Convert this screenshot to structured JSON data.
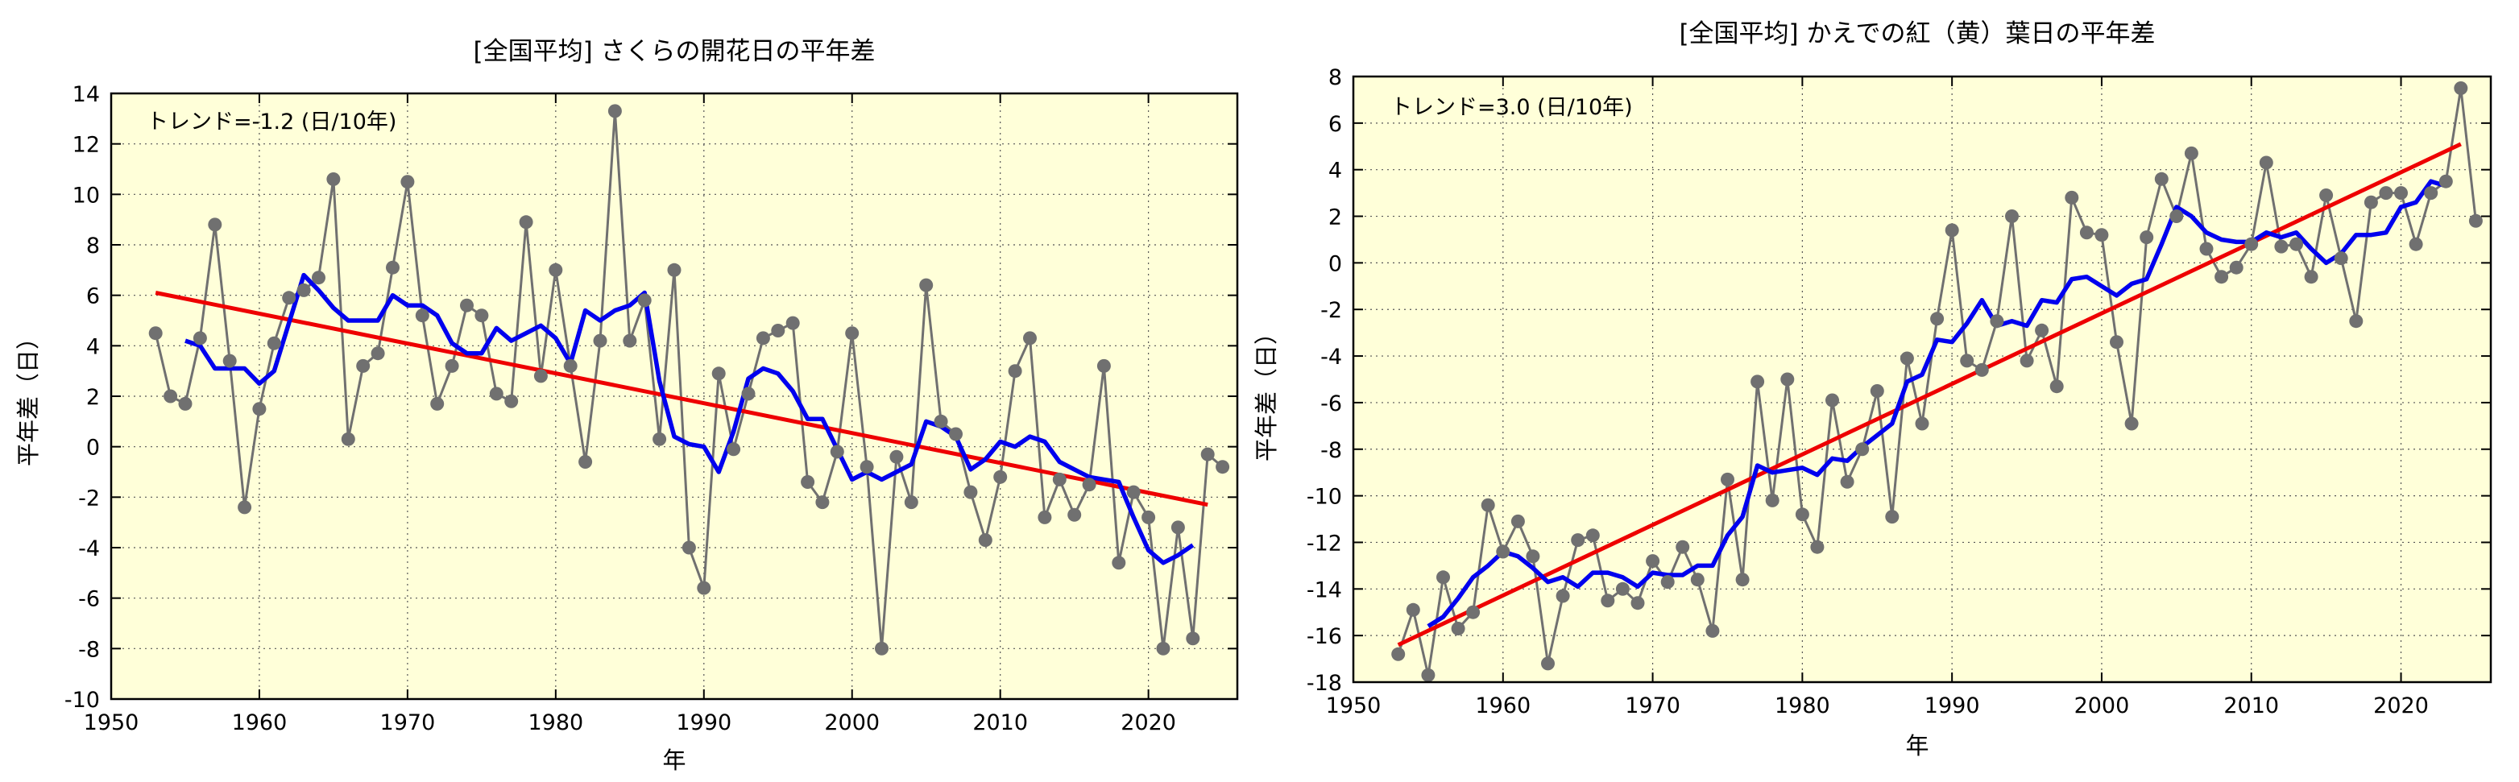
{
  "chart_data": [
    {
      "type": "line",
      "title": "[全国平均] さくらの開花日の平年差",
      "xlabel": "年",
      "ylabel": "平年差（日）",
      "annotation": "トレンド=-1.2 (日/10年)",
      "xlim": [
        1950,
        2026
      ],
      "ylim": [
        -10,
        14
      ],
      "xticks": [
        1950,
        1960,
        1970,
        1980,
        1990,
        2000,
        2010,
        2020
      ],
      "yticks": [
        -10,
        -8,
        -6,
        -4,
        -2,
        0,
        2,
        4,
        6,
        8,
        10,
        12,
        14
      ],
      "grid": true,
      "colors": {
        "background": "#ffffd9",
        "data": "#707070",
        "moving": "#0000ee",
        "trend": "#ee0000"
      },
      "series": [
        {
          "name": "annual",
          "x": [
            1953,
            1954,
            1955,
            1956,
            1957,
            1958,
            1959,
            1960,
            1961,
            1962,
            1963,
            1964,
            1965,
            1966,
            1967,
            1968,
            1969,
            1970,
            1971,
            1972,
            1973,
            1974,
            1975,
            1976,
            1977,
            1978,
            1979,
            1980,
            1981,
            1982,
            1983,
            1984,
            1985,
            1986,
            1987,
            1988,
            1989,
            1990,
            1991,
            1992,
            1993,
            1994,
            1995,
            1996,
            1997,
            1998,
            1999,
            2000,
            2001,
            2002,
            2003,
            2004,
            2005,
            2006,
            2007,
            2008,
            2009,
            2010,
            2011,
            2012,
            2013,
            2014,
            2015,
            2016,
            2017,
            2018,
            2019,
            2020,
            2021,
            2022,
            2023,
            2024,
            2025
          ],
          "values": [
            4.5,
            2.0,
            1.7,
            4.3,
            8.8,
            3.4,
            -2.4,
            1.5,
            4.1,
            5.9,
            6.2,
            6.7,
            10.6,
            0.3,
            3.2,
            3.7,
            7.1,
            10.5,
            5.2,
            1.7,
            3.2,
            5.6,
            5.2,
            2.1,
            1.8,
            8.9,
            2.8,
            7.0,
            3.2,
            -0.6,
            4.2,
            13.3,
            4.2,
            5.8,
            0.3,
            7.0,
            -4.0,
            -5.6,
            2.9,
            -0.1,
            2.1,
            4.3,
            4.6,
            4.9,
            -1.4,
            -2.2,
            -0.2,
            4.5,
            -0.8,
            -8.0,
            -0.4,
            -2.2,
            6.4,
            1.0,
            0.5,
            -1.8,
            -3.7,
            -1.2,
            3.0,
            4.3,
            -2.8,
            -1.3,
            -2.7,
            -1.5,
            3.2,
            -4.6,
            -1.8,
            -2.8,
            -8.0,
            -3.2,
            -7.6,
            -0.3,
            -0.8
          ]
        },
        {
          "name": "moving_average",
          "x": [
            1955,
            1956,
            1957,
            1958,
            1959,
            1960,
            1961,
            1962,
            1963,
            1964,
            1965,
            1966,
            1967,
            1968,
            1969,
            1970,
            1971,
            1972,
            1973,
            1974,
            1975,
            1976,
            1977,
            1978,
            1979,
            1980,
            1981,
            1982,
            1983,
            1984,
            1985,
            1986,
            1987,
            1988,
            1989,
            1990,
            1991,
            1992,
            1993,
            1994,
            1995,
            1996,
            1997,
            1998,
            1999,
            2000,
            2001,
            2002,
            2003,
            2004,
            2005,
            2006,
            2007,
            2008,
            2009,
            2010,
            2011,
            2012,
            2013,
            2014,
            2015,
            2016,
            2017,
            2018,
            2019,
            2020,
            2021,
            2022,
            2023
          ],
          "values": [
            4.2,
            4.0,
            3.1,
            3.1,
            3.1,
            2.5,
            3.0,
            4.9,
            6.8,
            6.2,
            5.5,
            5.0,
            5.0,
            5.0,
            6.0,
            5.6,
            5.6,
            5.2,
            4.1,
            3.7,
            3.7,
            4.7,
            4.2,
            4.5,
            4.8,
            4.3,
            3.3,
            5.4,
            5.0,
            5.4,
            5.6,
            6.1,
            2.6,
            0.4,
            0.1,
            0.0,
            -1.0,
            0.6,
            2.7,
            3.1,
            2.9,
            2.2,
            1.1,
            1.1,
            -0.1,
            -1.3,
            -1.0,
            -1.3,
            -1.0,
            -0.7,
            1.0,
            0.8,
            0.4,
            -0.9,
            -0.5,
            0.2,
            0.0,
            0.4,
            0.2,
            -0.6,
            -0.9,
            -1.2,
            -1.3,
            -1.4,
            -2.8,
            -4.1,
            -4.6,
            -4.3,
            -3.9
          ]
        },
        {
          "name": "trend",
          "x": [
            1953,
            2024
          ],
          "values": [
            6.1,
            -2.3
          ]
        }
      ]
    },
    {
      "type": "line",
      "title": "[全国平均] かえでの紅（黄）葉日の平年差",
      "xlabel": "年",
      "ylabel": "平年差（日）",
      "annotation": "トレンド=3.0 (日/10年)",
      "xlim": [
        1950,
        2026
      ],
      "ylim": [
        -18,
        8
      ],
      "xticks": [
        1950,
        1960,
        1970,
        1980,
        1990,
        2000,
        2010,
        2020
      ],
      "yticks": [
        -18,
        -16,
        -14,
        -12,
        -10,
        -8,
        -6,
        -4,
        -2,
        0,
        2,
        4,
        6,
        8
      ],
      "grid": true,
      "colors": {
        "background": "#ffffd9",
        "data": "#707070",
        "moving": "#0000ee",
        "trend": "#ee0000"
      },
      "series": [
        {
          "name": "annual",
          "x": [
            1953,
            1954,
            1955,
            1956,
            1957,
            1958,
            1959,
            1960,
            1961,
            1962,
            1963,
            1964,
            1965,
            1966,
            1967,
            1968,
            1969,
            1970,
            1971,
            1972,
            1973,
            1974,
            1975,
            1976,
            1977,
            1978,
            1979,
            1980,
            1981,
            1982,
            1983,
            1984,
            1985,
            1986,
            1987,
            1988,
            1989,
            1990,
            1991,
            1992,
            1993,
            1994,
            1995,
            1996,
            1997,
            1998,
            1999,
            2000,
            2001,
            2002,
            2003,
            2004,
            2005,
            2006,
            2007,
            2008,
            2009,
            2010,
            2011,
            2012,
            2013,
            2014,
            2015,
            2016,
            2017,
            2018,
            2019,
            2020,
            2021,
            2022,
            2023,
            2024,
            2025
          ],
          "values": [
            -16.8,
            -14.9,
            -17.7,
            -13.5,
            -15.7,
            -15.0,
            -10.4,
            -12.4,
            -11.1,
            -12.6,
            -17.2,
            -14.3,
            -11.9,
            -11.7,
            -14.5,
            -14.0,
            -14.6,
            -12.8,
            -13.7,
            -12.2,
            -13.6,
            -15.8,
            -9.3,
            -13.6,
            -5.1,
            -10.2,
            -5.0,
            -10.8,
            -12.2,
            -5.9,
            -9.4,
            -8.0,
            -5.5,
            -10.9,
            -4.1,
            -6.9,
            -2.4,
            1.4,
            -4.2,
            -4.6,
            -2.5,
            2.0,
            -4.2,
            -2.9,
            -5.3,
            2.8,
            1.3,
            1.2,
            -3.4,
            -6.9,
            1.1,
            3.6,
            2.0,
            4.7,
            0.6,
            -0.6,
            -0.2,
            0.8,
            4.3,
            0.7,
            0.8,
            -0.6,
            2.9,
            0.2,
            -2.5,
            2.6,
            3.0,
            3.0,
            0.8,
            3.0,
            3.5,
            7.5,
            1.8
          ]
        },
        {
          "name": "moving_average",
          "x": [
            1955,
            1956,
            1957,
            1958,
            1959,
            1960,
            1961,
            1962,
            1963,
            1964,
            1965,
            1966,
            1967,
            1968,
            1969,
            1970,
            1971,
            1972,
            1973,
            1974,
            1975,
            1976,
            1977,
            1978,
            1979,
            1980,
            1981,
            1982,
            1983,
            1984,
            1985,
            1986,
            1987,
            1988,
            1989,
            1990,
            1991,
            1992,
            1993,
            1994,
            1995,
            1996,
            1997,
            1998,
            1999,
            2000,
            2001,
            2002,
            2003,
            2004,
            2005,
            2006,
            2007,
            2008,
            2009,
            2010,
            2011,
            2012,
            2013,
            2014,
            2015,
            2016,
            2017,
            2018,
            2019,
            2020,
            2021,
            2022,
            2023
          ],
          "values": [
            -15.6,
            -15.2,
            -14.4,
            -13.5,
            -13.0,
            -12.4,
            -12.6,
            -13.1,
            -13.7,
            -13.5,
            -13.9,
            -13.3,
            -13.3,
            -13.5,
            -13.9,
            -13.3,
            -13.4,
            -13.4,
            -13.0,
            -13.0,
            -11.7,
            -10.9,
            -8.7,
            -9.0,
            -8.9,
            -8.8,
            -9.1,
            -8.4,
            -8.5,
            -7.9,
            -7.4,
            -6.9,
            -5.1,
            -4.8,
            -3.3,
            -3.4,
            -2.6,
            -1.6,
            -2.7,
            -2.5,
            -2.7,
            -1.6,
            -1.7,
            -0.7,
            -0.6,
            -1.0,
            -1.4,
            -0.9,
            -0.7,
            0.8,
            2.4,
            2.0,
            1.3,
            1.0,
            0.9,
            0.9,
            1.3,
            1.1,
            1.3,
            0.6,
            0.0,
            0.4,
            1.2,
            1.2,
            1.3,
            2.4,
            2.6,
            3.5,
            3.3
          ]
        },
        {
          "name": "trend",
          "x": [
            1953,
            2024
          ],
          "values": [
            -16.4,
            5.1
          ]
        }
      ]
    }
  ]
}
